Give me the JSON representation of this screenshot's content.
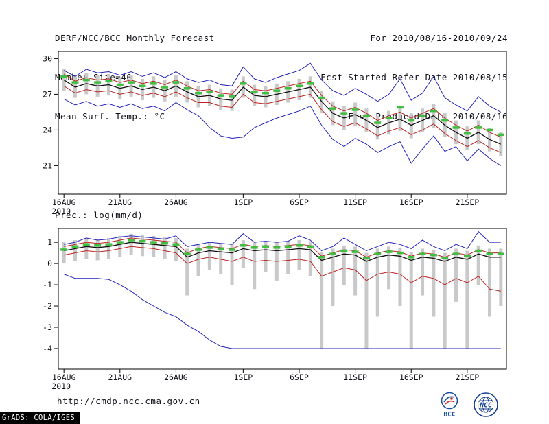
{
  "header": {
    "left": [
      "DERF/NCC/BCC Monthly Forecast",
      "Member Size=40",
      "Mean Surf. Temp.: °C"
    ],
    "right": [
      "For 2010/08/16-2010/09/24",
      "Fcst Started Refer Date 2010/08/15",
      "Fcst Produced Date 2010/08/16"
    ]
  },
  "panel2_label": "Prec.: log(mm/d)",
  "footer": {
    "url": "http://cmdp.ncc.cma.gov.cn"
  },
  "logos": {
    "bcc_label": "BCC",
    "ncc_label": "NCC",
    "logo_blue": "#1a4fa0"
  },
  "credit": "GrADS: COLA/IGES",
  "chart_data": [
    {
      "type": "line",
      "title": "Mean Surf. Temp.: °C",
      "xlabel": "",
      "ylabel": "°C",
      "grid": "off",
      "legend": "none",
      "n_days": 40,
      "x_start": "2010/08/16",
      "x_end": "2010/09/24",
      "x_tick_labels": [
        "16AUG",
        "21AUG",
        "26AUG",
        "1SEP",
        "6SEP",
        "11SEP",
        "16SEP",
        "21SEP"
      ],
      "x_tick_days": [
        0,
        5,
        10,
        16,
        21,
        26,
        31,
        36
      ],
      "x_year_label": "2010",
      "ylim": [
        18.6,
        30.6
      ],
      "yticks": [
        21,
        24,
        27,
        30
      ],
      "series": [
        {
          "name": "blue-upper-envelope",
          "color": "#2222bb",
          "width": 1,
          "values": [
            29.0,
            28.5,
            29.1,
            28.8,
            28.9,
            28.6,
            28.9,
            28.5,
            28.8,
            28.4,
            28.9,
            28.3,
            28.0,
            28.2,
            27.8,
            27.7,
            29.3,
            28.3,
            28.0,
            28.4,
            28.7,
            29.0,
            29.6,
            28.2,
            27.3,
            26.9,
            27.5,
            27.0,
            26.4,
            27.0,
            28.3,
            26.5,
            27.1,
            28.5,
            26.7,
            26.1,
            25.6,
            26.8,
            26.0,
            25.5
          ]
        },
        {
          "name": "red-upper",
          "color": "#bb2222",
          "width": 1,
          "values": [
            28.7,
            28.1,
            28.4,
            28.2,
            28.3,
            28.0,
            28.2,
            27.9,
            28.1,
            27.8,
            28.2,
            27.7,
            27.3,
            27.4,
            27.1,
            27.0,
            28.1,
            27.4,
            27.3,
            27.5,
            27.7,
            27.9,
            28.1,
            26.9,
            26.0,
            25.6,
            25.9,
            25.4,
            24.8,
            25.2,
            25.5,
            25.0,
            25.4,
            25.8,
            25.0,
            24.4,
            23.9,
            24.4,
            23.8,
            23.4
          ]
        },
        {
          "name": "black-mean",
          "color": "#111111",
          "width": 1.3,
          "values": [
            28.2,
            27.6,
            27.9,
            27.7,
            27.8,
            27.5,
            27.7,
            27.4,
            27.6,
            27.3,
            27.7,
            27.2,
            26.8,
            26.9,
            26.6,
            26.5,
            27.6,
            26.9,
            26.8,
            27.0,
            27.2,
            27.4,
            27.6,
            26.4,
            25.4,
            25.0,
            25.3,
            24.8,
            24.2,
            24.6,
            24.9,
            24.4,
            24.8,
            25.2,
            24.4,
            23.8,
            23.3,
            23.8,
            23.2,
            22.8
          ]
        },
        {
          "name": "red-lower",
          "color": "#bb2222",
          "width": 1,
          "values": [
            27.7,
            27.1,
            27.4,
            27.2,
            27.3,
            27.0,
            27.2,
            26.9,
            27.1,
            26.8,
            27.2,
            26.7,
            26.3,
            26.3,
            26.0,
            25.9,
            27.0,
            26.3,
            26.2,
            26.4,
            26.6,
            26.8,
            27.0,
            25.7,
            24.7,
            24.3,
            24.6,
            24.1,
            23.5,
            23.9,
            24.2,
            23.6,
            24.0,
            24.5,
            23.7,
            23.1,
            22.6,
            23.1,
            22.5,
            22.1
          ]
        },
        {
          "name": "blue-lower-envelope",
          "color": "#2222bb",
          "width": 1,
          "values": [
            26.6,
            26.1,
            26.4,
            26.0,
            26.2,
            25.9,
            26.2,
            25.8,
            26.0,
            25.6,
            26.3,
            25.7,
            25.2,
            24.2,
            23.5,
            23.3,
            23.4,
            24.2,
            24.6,
            25.0,
            25.3,
            25.6,
            26.0,
            24.4,
            23.2,
            22.6,
            23.3,
            22.8,
            22.1,
            22.6,
            23.0,
            21.2,
            22.4,
            23.5,
            22.2,
            22.6,
            21.4,
            22.4,
            21.6,
            21.0
          ]
        }
      ],
      "green_dashes": {
        "name": "green-dash-marks",
        "color": "#3fbf3f",
        "values": [
          28.5,
          28.0,
          28.2,
          28.0,
          28.1,
          27.8,
          28.0,
          27.7,
          27.9,
          27.6,
          28.0,
          27.5,
          27.1,
          27.2,
          26.9,
          26.8,
          27.9,
          27.2,
          27.1,
          27.3,
          27.5,
          27.7,
          27.9,
          26.7,
          25.8,
          25.4,
          25.7,
          25.2,
          24.6,
          25.0,
          25.9,
          24.8,
          25.2,
          25.6,
          24.8,
          24.2,
          23.7,
          24.2,
          24.0,
          23.6
        ]
      },
      "bars": {
        "name": "gray-spread-bars",
        "color": "#c9c9c9",
        "low": [
          27.3,
          26.7,
          27.0,
          26.8,
          26.9,
          26.6,
          26.8,
          26.5,
          26.7,
          26.4,
          26.8,
          26.3,
          25.9,
          26.0,
          25.7,
          25.6,
          26.7,
          26.0,
          25.9,
          26.1,
          26.3,
          26.5,
          26.7,
          25.4,
          24.4,
          24.0,
          24.3,
          23.8,
          23.2,
          23.6,
          23.9,
          23.3,
          23.8,
          24.2,
          23.4,
          22.8,
          22.3,
          22.8,
          22.2,
          21.8
        ],
        "high": [
          29.1,
          28.5,
          28.8,
          28.6,
          28.7,
          28.4,
          28.6,
          28.3,
          28.5,
          28.2,
          28.6,
          28.1,
          27.7,
          27.8,
          27.5,
          27.4,
          28.5,
          27.8,
          27.7,
          27.9,
          28.1,
          28.3,
          28.5,
          27.3,
          26.4,
          26.0,
          26.3,
          25.8,
          25.2,
          25.6,
          25.9,
          25.4,
          25.8,
          26.2,
          25.4,
          24.8,
          24.3,
          24.8,
          24.2,
          23.8
        ]
      }
    },
    {
      "type": "line",
      "title": "Prec.: log(mm/d)",
      "xlabel": "",
      "ylabel": "log(mm/d)",
      "grid": "off",
      "legend": "none",
      "n_days": 40,
      "x_start": "2010/08/16",
      "x_end": "2010/09/24",
      "x_tick_labels": [
        "16AUG",
        "21AUG",
        "26AUG",
        "1SEP",
        "6SEP",
        "11SEP",
        "16SEP",
        "21SEP"
      ],
      "x_tick_days": [
        0,
        5,
        10,
        16,
        21,
        26,
        31,
        36
      ],
      "x_year_label": "2010",
      "ylim": [
        -4.97,
        1.65
      ],
      "yticks": [
        -4,
        -3,
        -2,
        -1,
        0,
        1
      ],
      "series": [
        {
          "name": "blue-upper-envelope",
          "color": "#2222bb",
          "width": 1,
          "values": [
            0.9,
            1.0,
            1.2,
            1.1,
            1.15,
            1.25,
            1.3,
            1.25,
            1.2,
            1.15,
            1.3,
            0.8,
            0.9,
            1.0,
            0.95,
            0.9,
            1.4,
            1.0,
            1.05,
            1.0,
            1.05,
            1.3,
            1.1,
            0.6,
            0.8,
            1.2,
            0.9,
            0.6,
            0.8,
            1.0,
            0.9,
            0.7,
            1.1,
            0.8,
            0.6,
            0.9,
            0.7,
            1.5,
            1.0,
            1.0
          ]
        },
        {
          "name": "red-upper",
          "color": "#bb2222",
          "width": 1,
          "values": [
            0.8,
            0.9,
            1.0,
            0.95,
            1.0,
            1.1,
            1.2,
            1.15,
            1.1,
            1.05,
            1.0,
            0.5,
            0.7,
            0.8,
            0.75,
            0.7,
            0.9,
            0.8,
            0.85,
            0.8,
            0.85,
            0.9,
            0.85,
            0.35,
            0.5,
            0.65,
            0.6,
            0.3,
            0.5,
            0.6,
            0.55,
            0.35,
            0.5,
            0.45,
            0.3,
            0.5,
            0.4,
            0.65,
            0.5,
            0.5
          ]
        },
        {
          "name": "black-mean",
          "color": "#111111",
          "width": 1.3,
          "values": [
            0.6,
            0.7,
            0.8,
            0.75,
            0.8,
            0.9,
            1.0,
            0.95,
            0.9,
            0.85,
            0.8,
            0.3,
            0.5,
            0.6,
            0.55,
            0.5,
            0.7,
            0.6,
            0.65,
            0.6,
            0.65,
            0.7,
            0.65,
            0.15,
            0.3,
            0.45,
            0.4,
            0.1,
            0.3,
            0.4,
            0.35,
            0.15,
            0.3,
            0.25,
            0.1,
            0.3,
            0.2,
            0.45,
            0.3,
            0.3
          ]
        },
        {
          "name": "red-lower",
          "color": "#bb2222",
          "width": 1,
          "values": [
            0.4,
            0.5,
            0.6,
            0.55,
            0.6,
            0.7,
            0.8,
            0.75,
            0.7,
            0.6,
            0.5,
            0.0,
            0.2,
            0.3,
            0.2,
            0.1,
            0.3,
            0.1,
            0.15,
            0.1,
            0.15,
            0.2,
            0.1,
            -0.6,
            -0.4,
            -0.2,
            -0.3,
            -0.8,
            -0.5,
            -0.4,
            -0.5,
            -0.9,
            -0.6,
            -0.7,
            -1.0,
            -0.7,
            -0.9,
            -0.6,
            -1.2,
            -1.3
          ]
        },
        {
          "name": "blue-lower-envelope",
          "color": "#2222bb",
          "width": 1,
          "values": [
            -0.5,
            -0.7,
            -0.7,
            -0.7,
            -0.75,
            -1.0,
            -1.3,
            -1.7,
            -2.0,
            -2.3,
            -2.5,
            -2.9,
            -3.2,
            -3.6,
            -3.9,
            -4.0,
            -4.0,
            -4.0,
            -4.0,
            -4.0,
            -4.0,
            -4.0,
            -4.0,
            -4.0,
            -4.0,
            -4.0,
            -4.0,
            -4.0,
            -4.0,
            -4.0,
            -4.0,
            -4.0,
            -4.0,
            -4.0,
            -4.0,
            -4.0,
            -4.0,
            -4.0,
            -4.0,
            -4.0
          ]
        }
      ],
      "green_dashes": {
        "name": "green-dash-marks",
        "color": "#3fbf3f",
        "values": [
          0.65,
          0.8,
          0.9,
          0.85,
          0.9,
          1.0,
          1.1,
          1.05,
          1.0,
          0.95,
          0.9,
          0.45,
          0.65,
          0.75,
          0.7,
          0.65,
          0.85,
          0.75,
          0.8,
          0.75,
          0.8,
          0.85,
          0.8,
          0.3,
          0.45,
          0.6,
          0.55,
          0.25,
          0.45,
          0.55,
          0.5,
          0.3,
          0.45,
          0.4,
          0.25,
          0.45,
          0.35,
          0.6,
          0.45,
          0.45
        ]
      },
      "bars": {
        "name": "gray-spread-bars",
        "color": "#c9c9c9",
        "low": [
          0.0,
          0.1,
          0.2,
          0.15,
          0.2,
          0.3,
          0.4,
          0.35,
          0.3,
          0.2,
          0.1,
          -1.5,
          -0.6,
          -0.3,
          -0.5,
          -1.0,
          -0.2,
          -1.2,
          -0.4,
          -0.8,
          -0.5,
          -0.3,
          -0.6,
          -4.0,
          -2.0,
          -1.0,
          -1.5,
          -4.0,
          -2.5,
          -1.2,
          -2.0,
          -4.0,
          -1.5,
          -2.5,
          -4.0,
          -1.8,
          -4.0,
          -1.0,
          -2.5,
          -2.0
        ],
        "high": [
          1.0,
          1.1,
          1.2,
          1.15,
          1.2,
          1.3,
          1.4,
          1.35,
          1.3,
          1.25,
          1.2,
          0.7,
          0.9,
          1.0,
          0.95,
          0.9,
          1.1,
          1.0,
          1.05,
          1.0,
          1.05,
          1.1,
          1.05,
          0.55,
          0.7,
          0.85,
          0.8,
          0.5,
          0.7,
          0.8,
          0.75,
          0.55,
          0.7,
          0.65,
          0.5,
          0.7,
          0.6,
          0.85,
          0.7,
          0.7
        ]
      }
    }
  ]
}
